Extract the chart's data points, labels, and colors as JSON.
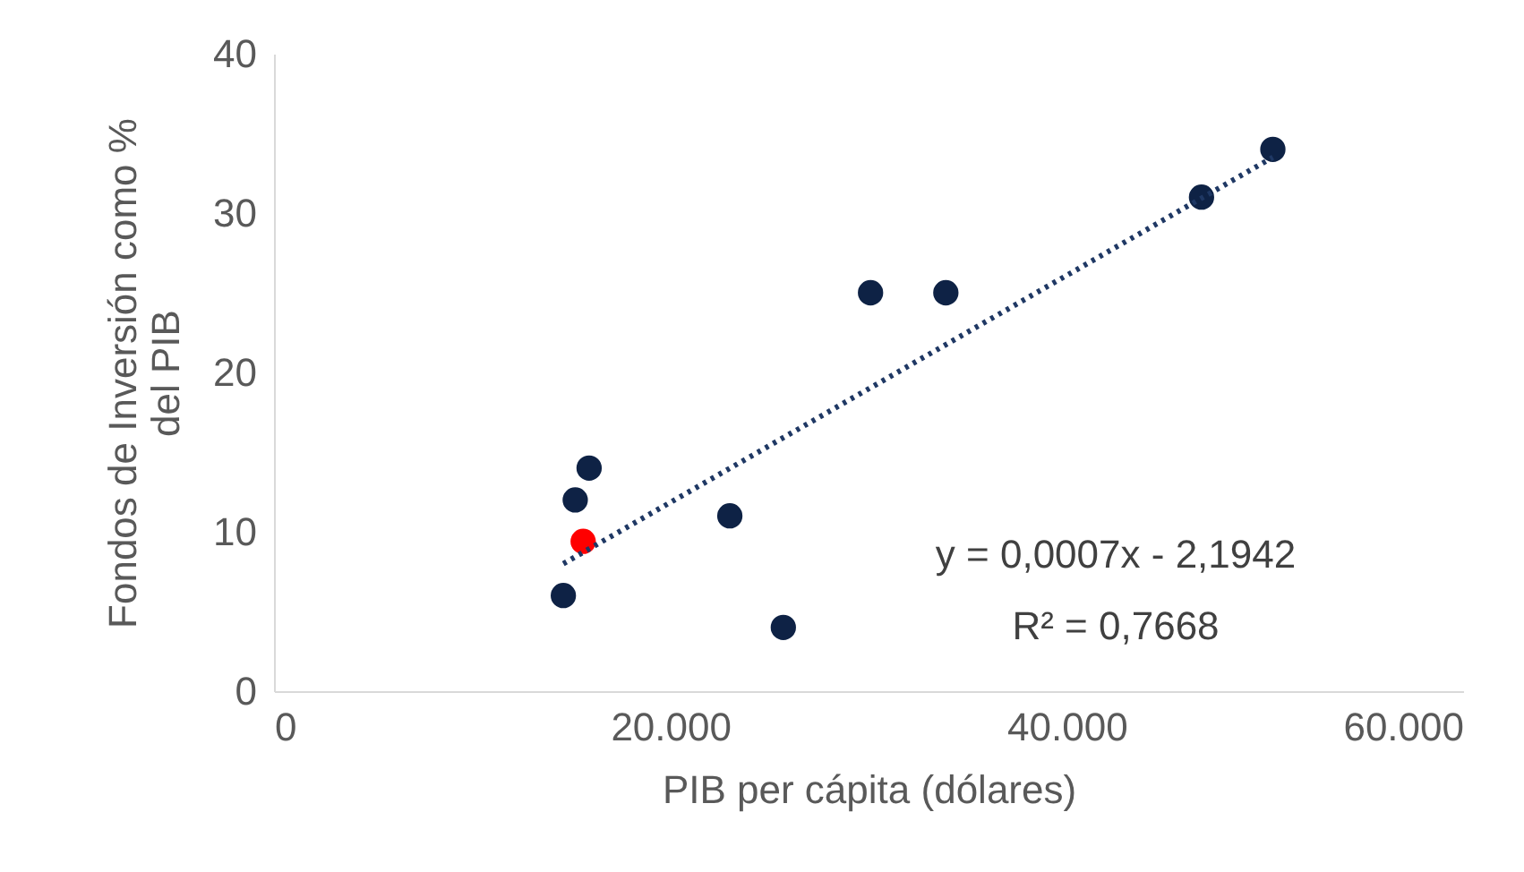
{
  "chart_data": {
    "type": "scatter",
    "xlabel": "PIB per cápita (dólares)",
    "ylabel": "Fondos de Inversión como % del PIB",
    "xlim": [
      0,
      60000
    ],
    "xticks": [
      0,
      {
        "value": 20000,
        "label": "20.000"
      },
      {
        "value": 40000,
        "label": "40.000"
      },
      {
        "value": 60000,
        "label": "60.000"
      }
    ],
    "ylim": [
      0,
      40
    ],
    "yticks": [
      0,
      10,
      20,
      30,
      40
    ],
    "grid": false,
    "marker": "circle",
    "annotations": [
      "y = 0,0007x - 2,1942",
      "R² = 0,7668"
    ],
    "series": [
      {
        "x": [
          14600,
          15200,
          15900,
          15600,
          23000,
          25700,
          30100,
          33900,
          46800,
          50400
        ],
        "values": [
          6.0,
          12.0,
          14.0,
          9.4,
          11.0,
          4.0,
          25.0,
          25.0,
          31.0,
          34.0
        ],
        "colors": [
          "#0e2245",
          "#0e2245",
          "#0e2245",
          "#ff0000",
          "#0e2245",
          "#0e2245",
          "#0e2245",
          "#0e2245",
          "#0e2245",
          "#0e2245"
        ]
      },
      {
        "type": "line",
        "line_style": "dotted",
        "marker": "none",
        "color": "#1f3864",
        "x": [
          14600,
          50400
        ],
        "values": [
          8.0,
          33.5
        ]
      }
    ]
  }
}
